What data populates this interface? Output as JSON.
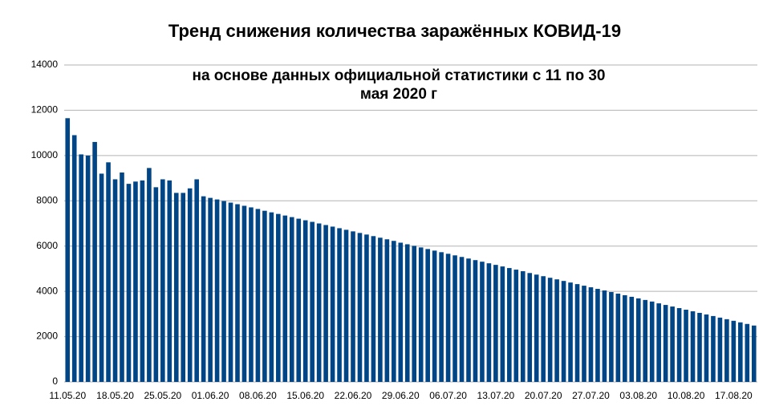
{
  "chart_data": {
    "type": "bar",
    "title": "Тренд снижения количества заражённых КОВИД-19",
    "subtitle": [
      "на основе данных официальной статистики с 11 по 30",
      "мая 2020 г"
    ],
    "categories": [
      "11.05.20",
      null,
      null,
      null,
      null,
      null,
      null,
      "18.05.20",
      null,
      null,
      null,
      null,
      null,
      null,
      "25.05.20",
      null,
      null,
      null,
      null,
      null,
      null,
      "01.06.20",
      null,
      null,
      null,
      null,
      null,
      null,
      "08.06.20",
      null,
      null,
      null,
      null,
      null,
      null,
      "15.06.20",
      null,
      null,
      null,
      null,
      null,
      null,
      "22.06.20",
      null,
      null,
      null,
      null,
      null,
      null,
      "29.06.20",
      null,
      null,
      null,
      null,
      null,
      null,
      "06.07.20",
      null,
      null,
      null,
      null,
      null,
      null,
      "13.07.20",
      null,
      null,
      null,
      null,
      null,
      null,
      "20.07.20",
      null,
      null,
      null,
      null,
      null,
      null,
      "27.07.20",
      null,
      null,
      null,
      null,
      null,
      null,
      "03.08.20",
      null,
      null,
      null,
      null,
      null,
      null,
      "10.08.20",
      null,
      null,
      null,
      null,
      null,
      null,
      "17.08.20",
      null,
      null,
      null
    ],
    "values": [
      11650,
      10900,
      10050,
      10000,
      10600,
      9200,
      9700,
      8950,
      9250,
      8750,
      8850,
      8900,
      9450,
      8600,
      8950,
      8900,
      8350,
      8350,
      8550,
      8950,
      8200,
      8130,
      8060,
      7990,
      7920,
      7850,
      7780,
      7710,
      7640,
      7560,
      7490,
      7420,
      7350,
      7280,
      7210,
      7140,
      7070,
      7000,
      6930,
      6860,
      6790,
      6720,
      6650,
      6580,
      6510,
      6440,
      6370,
      6300,
      6230,
      6150,
      6080,
      6010,
      5940,
      5870,
      5800,
      5730,
      5660,
      5590,
      5520,
      5450,
      5380,
      5310,
      5240,
      5170,
      5100,
      5030,
      4960,
      4890,
      4810,
      4740,
      4670,
      4600,
      4530,
      4460,
      4390,
      4320,
      4250,
      4180,
      4110,
      4040,
      3970,
      3900,
      3830,
      3760,
      3690,
      3620,
      3550,
      3470,
      3400,
      3330,
      3260,
      3190,
      3120,
      3050,
      2980,
      2910,
      2840,
      2770,
      2700,
      2630,
      2560,
      2490
    ],
    "color": "#004586",
    "ylim": [
      0,
      14000
    ],
    "yticks": [
      0,
      2000,
      4000,
      6000,
      8000,
      10000,
      12000,
      14000
    ],
    "grid": true
  }
}
